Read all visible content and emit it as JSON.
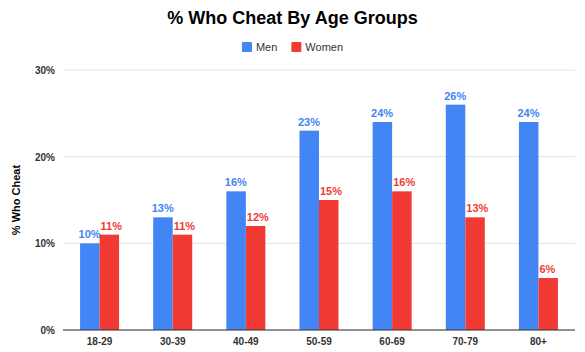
{
  "chart_data": {
    "type": "bar",
    "title": "% Who Cheat By Age Groups",
    "y_label": "% Who Cheat",
    "categories": [
      "18-29",
      "30-39",
      "40-49",
      "50-59",
      "60-69",
      "70-79",
      "80+"
    ],
    "series": [
      {
        "name": "Men",
        "color": "#4285f4",
        "values": [
          10,
          13,
          16,
          23,
          24,
          26,
          24
        ],
        "value_labels": [
          "10%",
          "13%",
          "16%",
          "23%",
          "24%",
          "26%",
          "24%"
        ]
      },
      {
        "name": "Women",
        "color": "#f23a35",
        "values": [
          11,
          11,
          12,
          15,
          16,
          13,
          6
        ],
        "value_labels": [
          "11%",
          "11%",
          "12%",
          "15%",
          "16%",
          "13%",
          "6%"
        ]
      }
    ],
    "ylim": [
      0,
      30
    ],
    "yticks": [
      {
        "value": 0,
        "label": "0%"
      },
      {
        "value": 10,
        "label": "10%"
      },
      {
        "value": 20,
        "label": "20%"
      },
      {
        "value": 30,
        "label": "30%"
      }
    ],
    "grid": true,
    "legend": "top",
    "data_labels": true
  }
}
